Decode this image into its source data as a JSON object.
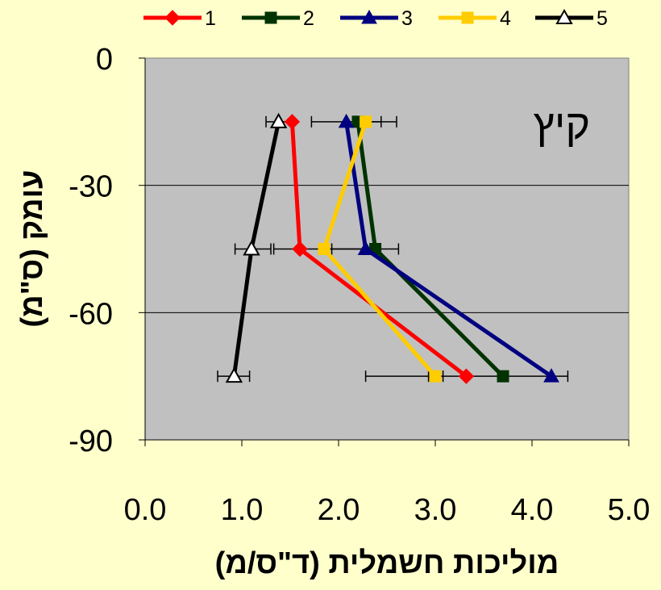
{
  "chart_data": {
    "type": "line",
    "annotation": "קיץ",
    "xlabel": "מוליכות חשמלית (ד\"ס/מ)",
    "ylabel": "עומק (ס\"מ)",
    "xlim": [
      0,
      5
    ],
    "ylim": [
      -90,
      0
    ],
    "x_ticks": [
      "0.0",
      "1.0",
      "2.0",
      "3.0",
      "4.0",
      "5.0"
    ],
    "y_ticks": [
      "0",
      "-30",
      "-60",
      "-90"
    ],
    "grid": "horizontal",
    "legend_position": "top",
    "plot_background": "#C0C0C0",
    "page_background": "#FFFFCC",
    "series": [
      {
        "name": "1",
        "color": "#FF0000",
        "marker": "diamond",
        "points": [
          {
            "x": 1.52,
            "y": -15
          },
          {
            "x": 1.6,
            "y": -45
          },
          {
            "x": 3.32,
            "y": -75
          }
        ]
      },
      {
        "name": "2",
        "color": "#003300",
        "marker": "square",
        "points": [
          {
            "x": 2.2,
            "y": -15
          },
          {
            "x": 2.38,
            "y": -45
          },
          {
            "x": 3.7,
            "y": -75
          }
        ]
      },
      {
        "name": "3",
        "color": "#000080",
        "marker": "triangle",
        "points": [
          {
            "x": 2.08,
            "y": -15
          },
          {
            "x": 2.28,
            "y": -45
          },
          {
            "x": 4.2,
            "y": -75
          }
        ],
        "error_bars": [
          {
            "y": -15,
            "low": 1.72,
            "high": 2.44
          },
          {
            "y": -45,
            "low": 1.93,
            "high": 2.62
          },
          {
            "y": -75,
            "low": 2.28,
            "high": 4.37
          }
        ]
      },
      {
        "name": "4",
        "color": "#FFCC00",
        "marker": "square",
        "points": [
          {
            "x": 2.28,
            "y": -15
          },
          {
            "x": 1.85,
            "y": -45
          },
          {
            "x": 3.0,
            "y": -75
          }
        ],
        "error_bars": [
          {
            "y": -15,
            "low": 2.15,
            "high": 2.6
          },
          {
            "y": -45,
            "low": 1.33,
            "high": 2.35
          },
          {
            "y": -75,
            "low": 2.93,
            "high": 3.08
          }
        ]
      },
      {
        "name": "5",
        "color": "#000000",
        "marker": "triangle-open",
        "points": [
          {
            "x": 1.38,
            "y": -15
          },
          {
            "x": 1.1,
            "y": -45
          },
          {
            "x": 0.92,
            "y": -75
          }
        ],
        "error_bars": [
          {
            "y": -15,
            "low": 1.25,
            "high": 1.52
          },
          {
            "y": -45,
            "low": 0.93,
            "high": 1.3
          },
          {
            "y": -75,
            "low": 0.75,
            "high": 1.08
          }
        ]
      }
    ]
  }
}
